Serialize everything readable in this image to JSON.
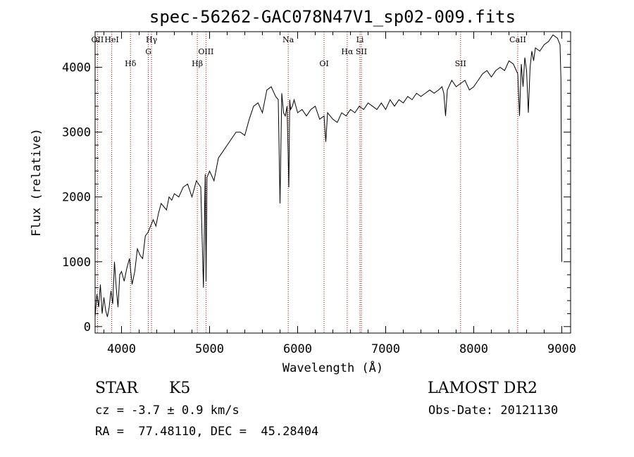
{
  "chart_title": "spec-56262-GAC078N47V1_sp02-009.fits",
  "chart_data": {
    "type": "line",
    "title": "spec-56262-GAC078N47V1_sp02-009.fits",
    "xlabel": "Wavelength (Å)",
    "ylabel": "Flux (relative)",
    "xlim": [
      3700,
      9100
    ],
    "ylim": [
      -100,
      4550
    ],
    "x_ticks": [
      4000,
      5000,
      6000,
      7000,
      8000,
      9000
    ],
    "y_ticks": [
      0,
      1000,
      2000,
      3000,
      4000
    ],
    "series": [
      {
        "color": "#000000",
        "x": [
          3700,
          3720,
          3740,
          3760,
          3780,
          3800,
          3820,
          3840,
          3860,
          3880,
          3900,
          3920,
          3940,
          3960,
          3980,
          4000,
          4030,
          4060,
          4090,
          4120,
          4150,
          4180,
          4210,
          4240,
          4270,
          4300,
          4330,
          4360,
          4390,
          4420,
          4450,
          4480,
          4510,
          4540,
          4570,
          4600,
          4650,
          4700,
          4750,
          4800,
          4850,
          4900,
          4930,
          4950,
          4960,
          4970,
          5000,
          5050,
          5100,
          5150,
          5200,
          5250,
          5300,
          5350,
          5400,
          5450,
          5500,
          5550,
          5600,
          5650,
          5700,
          5750,
          5780,
          5800,
          5820,
          5840,
          5860,
          5880,
          5900,
          5910,
          5920,
          5940,
          5960,
          6000,
          6050,
          6100,
          6150,
          6200,
          6250,
          6300,
          6320,
          6340,
          6400,
          6450,
          6500,
          6550,
          6600,
          6650,
          6700,
          6750,
          6800,
          6850,
          6900,
          6950,
          7000,
          7050,
          7100,
          7150,
          7200,
          7250,
          7300,
          7350,
          7400,
          7450,
          7500,
          7550,
          7600,
          7640,
          7660,
          7680,
          7700,
          7750,
          7800,
          7850,
          7900,
          7950,
          8000,
          8050,
          8100,
          8150,
          8200,
          8250,
          8300,
          8350,
          8400,
          8450,
          8500,
          8520,
          8540,
          8560,
          8580,
          8600,
          8620,
          8640,
          8660,
          8680,
          8700,
          8750,
          8800,
          8850,
          8900,
          8950,
          8980,
          8990,
          9000
        ],
        "values": [
          150,
          500,
          300,
          650,
          200,
          450,
          250,
          150,
          300,
          550,
          350,
          1000,
          600,
          300,
          800,
          850,
          700,
          900,
          1050,
          650,
          850,
          1200,
          1100,
          1050,
          1400,
          1450,
          1550,
          1650,
          1550,
          1750,
          1900,
          1850,
          1800,
          2000,
          1950,
          2050,
          2000,
          2150,
          2200,
          2000,
          2250,
          2150,
          600,
          2350,
          700,
          2300,
          2400,
          2250,
          2600,
          2700,
          2800,
          2900,
          3000,
          3000,
          2950,
          3200,
          3400,
          3450,
          3300,
          3650,
          3700,
          3550,
          3500,
          1900,
          3600,
          3300,
          3250,
          3400,
          2150,
          3500,
          3350,
          3400,
          3500,
          3300,
          3350,
          3250,
          3350,
          3400,
          3200,
          3250,
          2850,
          3300,
          3200,
          3150,
          3300,
          3250,
          3350,
          3300,
          3400,
          3350,
          3450,
          3400,
          3350,
          3450,
          3350,
          3500,
          3400,
          3500,
          3450,
          3550,
          3500,
          3600,
          3550,
          3600,
          3650,
          3600,
          3650,
          3700,
          3600,
          3250,
          3650,
          3800,
          3700,
          3750,
          3800,
          3650,
          3700,
          3800,
          3900,
          3950,
          3850,
          3950,
          4000,
          3950,
          4100,
          4050,
          3900,
          3250,
          4050,
          3700,
          4150,
          3950,
          3300,
          4000,
          4250,
          4100,
          4300,
          4250,
          4350,
          4400,
          4500,
          4450,
          4350,
          3800,
          1000
        ]
      }
    ],
    "line_annotations": [
      {
        "label": "OII",
        "x": 3727
      },
      {
        "label": "HeI",
        "x": 3889
      },
      {
        "label": "Hδ",
        "x": 4102
      },
      {
        "label": "Hγ",
        "x": 4341
      },
      {
        "label": "G",
        "x": 4305
      },
      {
        "label": "Hβ",
        "x": 4861
      },
      {
        "label": "OIII",
        "x": 4959
      },
      {
        "label": "Na",
        "x": 5893
      },
      {
        "label": "OI",
        "x": 6300
      },
      {
        "label": "Hα",
        "x": 6563
      },
      {
        "label": "Li",
        "x": 6708
      },
      {
        "label": "SII",
        "x": 6724
      },
      {
        "label": "SII",
        "x": 7850
      },
      {
        "label": "CaII",
        "x": 8500
      }
    ]
  },
  "info": {
    "object_class": "STAR",
    "subclass": "K5",
    "survey": "LAMOST DR2",
    "redshift_line": "cz = -3.7 ± 0.9 km/s",
    "obs_date": "Obs-Date: 20121130",
    "coords": "RA =  77.48110, DEC =  45.28404"
  }
}
